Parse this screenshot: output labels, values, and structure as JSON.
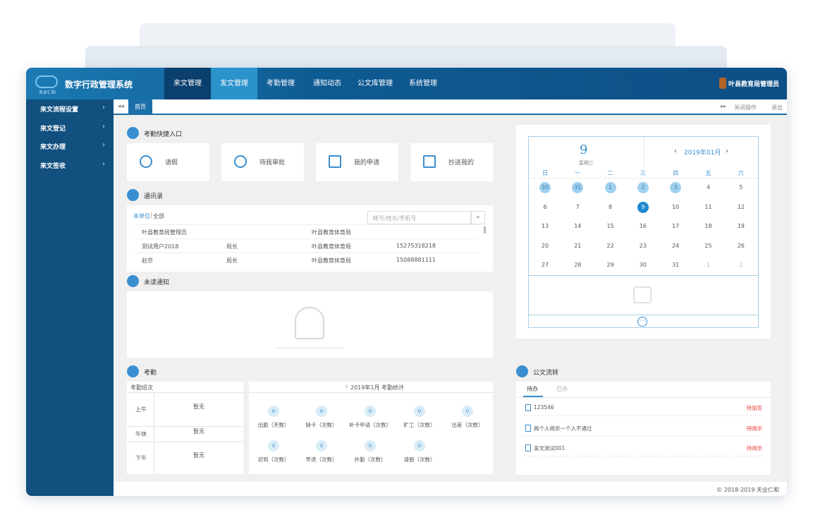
{
  "header": {
    "logo_text": "天业仁和",
    "title": "数字行政管理系统",
    "nav": [
      "来文管理",
      "发文管理",
      "考勤管理",
      "通知动态",
      "公文库管理",
      "系统管理"
    ],
    "user": "叶县教育局管理员"
  },
  "sidebar": {
    "items": [
      "来文流程设置",
      "来文登记",
      "来文办理",
      "来文签收"
    ]
  },
  "tabs": {
    "items": [
      "首页"
    ],
    "actions": [
      "关闭操作",
      "退出"
    ]
  },
  "quick_entry": {
    "title": "考勤快捷入口",
    "items": [
      "请假",
      "待我审批",
      "我的申请",
      "抄送我的"
    ]
  },
  "contacts": {
    "title": "通讯录",
    "filters": [
      "本单位",
      "全部"
    ],
    "search_placeholder": "帐号/姓名/手机号",
    "rows": [
      {
        "name": "叶县教育局管理员",
        "unit": "叶县教育体育局"
      },
      {
        "name": "测试用户2018",
        "title": "局长",
        "unit": "叶县教育体育局",
        "phone": "15275318218"
      },
      {
        "name": "赵京",
        "title": "局长",
        "unit": "叶县教育体育局",
        "phone": "15088881111"
      }
    ]
  },
  "notices": {
    "title": "未读通知"
  },
  "calendar": {
    "day": 9,
    "weekday": "星期三",
    "month": "2019年01月",
    "weekdays": [
      "日",
      "一",
      "二",
      "三",
      "四",
      "五",
      "六"
    ],
    "weeks": [
      [
        30,
        31,
        1,
        2,
        3,
        4,
        5
      ],
      [
        6,
        7,
        8,
        9,
        10,
        11,
        12
      ],
      [
        13,
        14,
        15,
        16,
        17,
        18,
        19
      ],
      [
        20,
        21,
        22,
        23,
        24,
        25,
        26
      ],
      [
        27,
        28,
        29,
        30,
        31,
        1,
        2
      ]
    ]
  },
  "attendance": {
    "title": "考勤",
    "shift_header": "考勤班次",
    "shifts": [
      {
        "name": "上午",
        "value": "暂无"
      },
      {
        "name": "午休",
        "value": "暂无"
      },
      {
        "name": "下午",
        "value": "暂无"
      }
    ],
    "stats_title": "2019年1月 考勤统计",
    "stats": [
      {
        "label": "出勤（天数）",
        "value": 0
      },
      {
        "label": "缺卡（次数）",
        "value": 0
      },
      {
        "label": "补卡申请（次数）",
        "value": 0
      },
      {
        "label": "旷工（次数）",
        "value": 0
      },
      {
        "label": "出差（次数）",
        "value": 0
      },
      {
        "label": "迟到（次数）",
        "value": 0
      },
      {
        "label": "早退（次数）",
        "value": 0
      },
      {
        "label": "外勤（次数）",
        "value": 0
      },
      {
        "label": "请假（次数）",
        "value": 0
      }
    ]
  },
  "documents": {
    "title": "公文流转",
    "tabs": [
      "待办",
      "已办"
    ],
    "items": [
      {
        "name": "123546",
        "status": "待加签"
      },
      {
        "name": "两个人阅示一个人不通过",
        "status": "待阅示"
      },
      {
        "name": "发文测试001",
        "status": "待阅示"
      }
    ]
  },
  "footer": "© 2018-2019 天业仁和"
}
